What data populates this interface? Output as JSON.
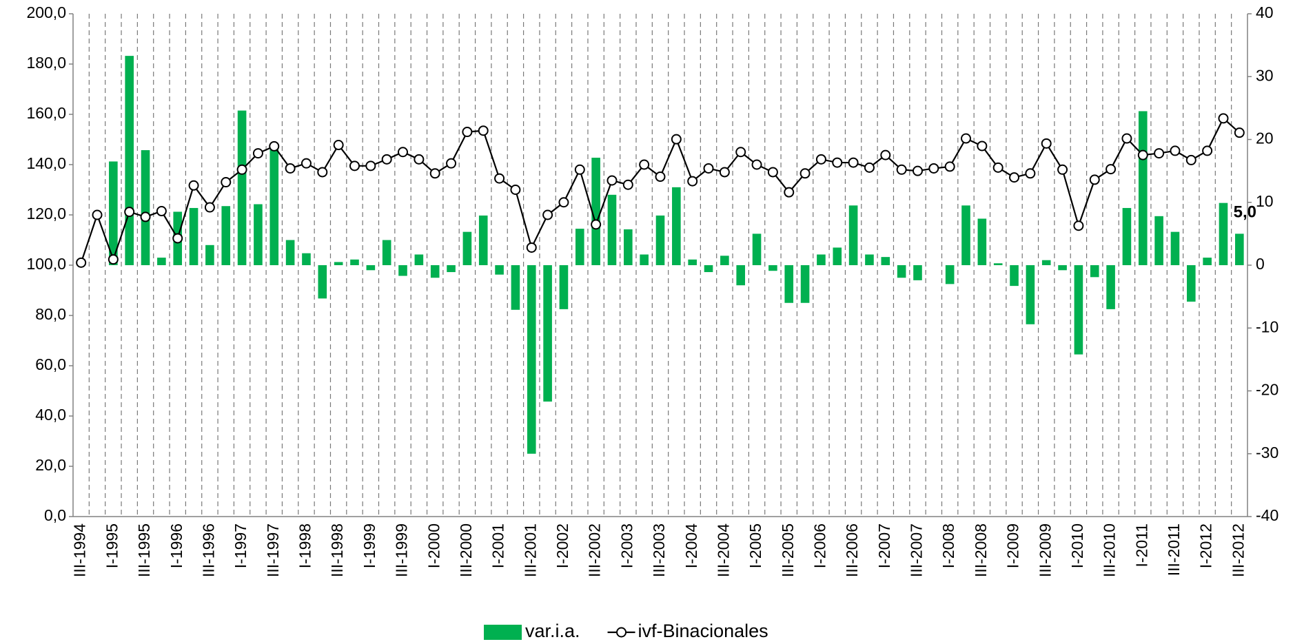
{
  "chart_data": {
    "type": "combo",
    "categories": [
      "III-1994",
      null,
      "I-1995",
      null,
      "III-1995",
      null,
      "I-1996",
      null,
      "III-1996",
      null,
      "I-1997",
      null,
      "III-1997",
      null,
      "I-1998",
      null,
      "III-1998",
      null,
      "I-1999",
      null,
      "III-1999",
      null,
      "I-2000",
      null,
      "III-2000",
      null,
      "I-2001",
      null,
      "III-2001",
      null,
      "I-2002",
      null,
      "III-2002",
      null,
      "I-2003",
      null,
      "III-2003",
      null,
      "I-2004",
      null,
      "III-2004",
      null,
      "I-2005",
      null,
      "III-2005",
      null,
      "I-2006",
      null,
      "III-2006",
      null,
      "I-2007",
      null,
      "III-2007",
      null,
      "I-2008",
      null,
      "III-2008",
      null,
      "I-2009",
      null,
      "III-2009",
      null,
      "I-2010",
      null,
      "III-2010",
      null,
      "I-2011",
      null,
      "III-2011",
      null,
      "I-2012",
      null,
      "III-2012"
    ],
    "series": [
      {
        "name": "var.i.a.",
        "type": "bar",
        "axis": "y2",
        "color": "#00b050",
        "values": [
          null,
          null,
          16.5,
          33.3,
          18.3,
          1.2,
          8.5,
          9.1,
          3.2,
          9.4,
          24.6,
          9.7,
          18.4,
          4.0,
          1.9,
          -5.3,
          0.5,
          0.9,
          -0.8,
          4.0,
          -1.7,
          1.7,
          -2.0,
          -1.1,
          5.3,
          7.9,
          -1.5,
          -7.1,
          -30.0,
          -21.7,
          -7.0,
          5.8,
          17.1,
          11.2,
          5.7,
          1.7,
          7.9,
          12.4,
          0.9,
          -1.1,
          1.5,
          -3.2,
          5.0,
          -0.9,
          -6.0,
          -6.0,
          1.7,
          2.8,
          9.5,
          1.7,
          1.3,
          -2.0,
          -2.4,
          0.0,
          -3.0,
          9.5,
          7.4,
          0.3,
          -3.3,
          -9.4,
          0.8,
          -0.8,
          -14.2,
          -1.9,
          -7.0,
          9.1,
          24.5,
          7.8,
          5.3,
          -5.8,
          1.2,
          9.9,
          5.0
        ],
        "value_labels": [
          null,
          null,
          null,
          null,
          null,
          null,
          null,
          null,
          null,
          null,
          null,
          null,
          null,
          null,
          null,
          null,
          null,
          null,
          null,
          null,
          null,
          null,
          null,
          null,
          null,
          null,
          null,
          null,
          null,
          null,
          null,
          null,
          null,
          null,
          null,
          null,
          null,
          null,
          null,
          null,
          null,
          null,
          null,
          null,
          null,
          null,
          null,
          null,
          null,
          null,
          null,
          null,
          null,
          null,
          null,
          null,
          null,
          null,
          null,
          null,
          null,
          null,
          null,
          null,
          null,
          null,
          null,
          null,
          null,
          null,
          null,
          null,
          "5,0"
        ]
      },
      {
        "name": "ivf-Binacionales",
        "type": "line",
        "color": "#000000",
        "values": [
          101.0,
          120.0,
          102.3,
          121.2,
          119.2,
          121.5,
          110.7,
          131.7,
          123.0,
          133.0,
          138.0,
          144.5,
          147.3,
          138.5,
          140.5,
          137.0,
          147.8,
          139.5,
          139.5,
          142.1,
          145.0,
          142.1,
          136.5,
          140.5,
          153.0,
          153.5,
          134.5,
          130.0,
          107.0,
          120.0,
          125.0,
          138.0,
          116.2,
          133.7,
          132.0,
          140.0,
          135.2,
          150.1,
          133.4,
          138.5,
          137.0,
          145.0,
          140.0,
          137.0,
          129.0,
          136.5,
          142.1,
          140.8,
          140.8,
          138.8,
          143.8,
          138.0,
          137.5,
          138.5,
          139.2,
          150.4,
          147.4,
          138.8,
          134.9,
          136.5,
          148.4,
          138.0,
          115.7,
          134.0,
          138.2,
          150.4,
          143.8,
          144.5,
          145.5,
          141.8,
          145.5,
          158.4,
          152.7
        ]
      }
    ],
    "ylim": [
      0,
      200
    ],
    "yticks": [
      {
        "value": 0,
        "label": "0,0"
      },
      {
        "value": 20,
        "label": "20,0"
      },
      {
        "value": 40,
        "label": "40,0"
      },
      {
        "value": 60,
        "label": "60,0"
      },
      {
        "value": 80,
        "label": "80,0"
      },
      {
        "value": 100,
        "label": "100,0"
      },
      {
        "value": 120,
        "label": "120,0"
      },
      {
        "value": 140,
        "label": "140,0"
      },
      {
        "value": 160,
        "label": "160,0"
      },
      {
        "value": 180,
        "label": "180,0"
      },
      {
        "value": 200,
        "label": "200,0"
      }
    ],
    "y2lim": [
      -40,
      40
    ],
    "y2ticks": [
      -40,
      -30,
      -20,
      -10,
      0,
      10,
      20,
      30,
      40
    ],
    "grid": "x-dashed",
    "legend": "bottom"
  }
}
